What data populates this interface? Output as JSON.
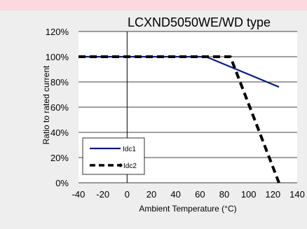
{
  "colors": {
    "top_band": "#fbd9de",
    "background": "#eeeeee",
    "plot_area": "#ffffff",
    "idc1": "#0a1e7a",
    "idc2": "#000000",
    "gridline": "#000000"
  },
  "chart_data": {
    "type": "line",
    "title": "LCXND5050WE/WD type",
    "xlabel": "Ambient Temperature (°C)",
    "ylabel": "Ratio to rated current",
    "xlim": [
      -40,
      140
    ],
    "ylim": [
      0,
      120
    ],
    "x_ticks": [
      -40,
      -20,
      0,
      20,
      40,
      60,
      80,
      100,
      120,
      140
    ],
    "x_tick_labels": [
      "-40",
      "-20",
      "0",
      "20",
      "40",
      "60",
      "80",
      "100",
      "120",
      "140"
    ],
    "y_ticks": [
      0,
      20,
      40,
      60,
      80,
      100,
      120
    ],
    "y_tick_labels": [
      "0%",
      "20%",
      "40%",
      "60%",
      "80%",
      "100%",
      "120%"
    ],
    "grid": "horizontal",
    "legend_position": "bottom-left",
    "series": [
      {
        "name": "Idc1",
        "style": "solid",
        "x": [
          -40,
          65,
          125
        ],
        "y": [
          100,
          100,
          76
        ]
      },
      {
        "name": "Idc2",
        "style": "dashed",
        "x": [
          -40,
          85,
          125
        ],
        "y": [
          100,
          100,
          0
        ]
      }
    ]
  }
}
